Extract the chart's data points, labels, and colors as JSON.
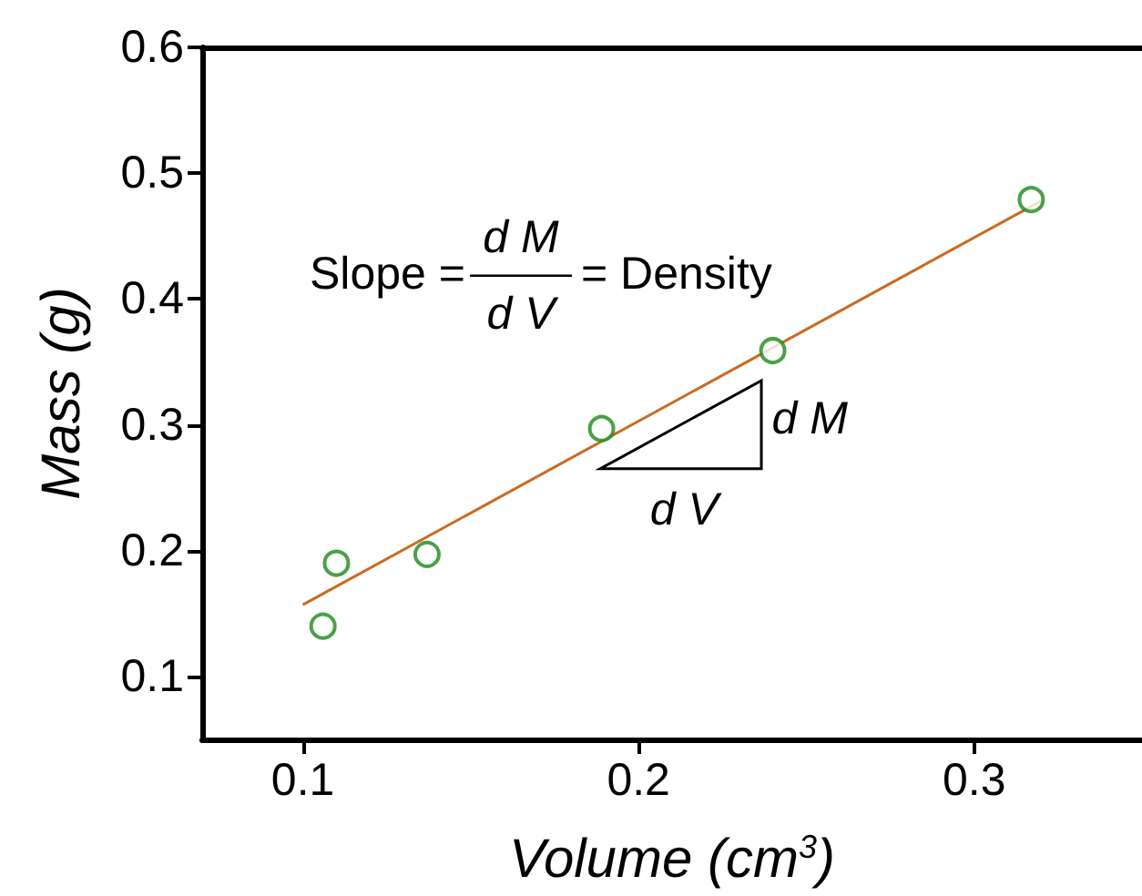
{
  "chart_data": {
    "type": "scatter",
    "xlabel": "Volume (cm$^{3}$)",
    "ylabel": "Mass (g)",
    "xlim": [
      0.07,
      0.35
    ],
    "xticks": [
      0.1,
      0.2,
      0.3
    ],
    "ylim": [
      0.05,
      0.6
    ],
    "yticks": [
      0.1,
      0.2,
      0.3,
      0.4,
      0.5,
      0.6
    ],
    "grid": false,
    "legend": false,
    "marker": "circle",
    "series": [
      {
        "color": "#1a8a1a",
        "x": [
          0.106,
          0.11,
          0.137,
          0.189,
          0.24,
          0.317
        ],
        "values": [
          0.14,
          0.19,
          0.197,
          0.297,
          0.359,
          0.479
        ]
      },
      {
        "type": "line",
        "color": "#cc6a20",
        "marker": "none",
        "line_style": "solid",
        "x": [
          0.1,
          0.32
        ],
        "values": [
          0.157,
          0.478
        ]
      }
    ],
    "annotations": [
      "Slope =",
      "d M",
      "d V",
      "= Density",
      "d M",
      "d V"
    ]
  }
}
